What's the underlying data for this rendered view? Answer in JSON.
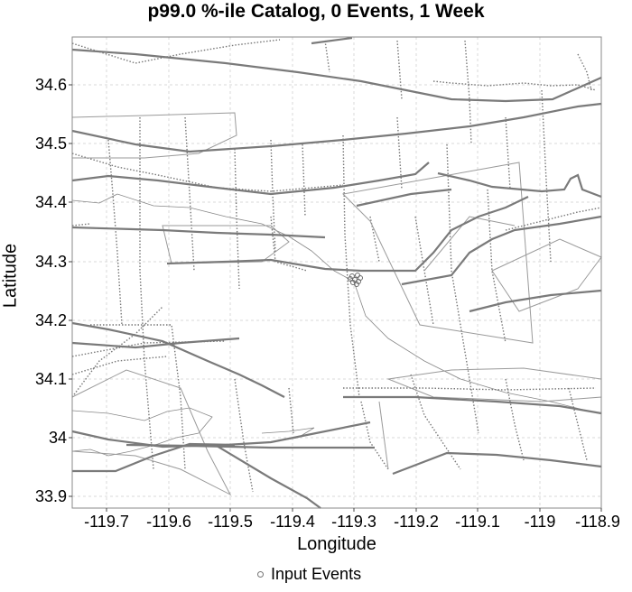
{
  "title": "p99.0 %-ile Catalog, 0 Events, 1 Week",
  "xlabel": "Longitude",
  "ylabel": "Latitude",
  "legend": {
    "label": "Input Events"
  },
  "x_ticks": [
    "-119.7",
    "-119.6",
    "-119.5",
    "-119.4",
    "-119.3",
    "-119.2",
    "-119.1",
    "-119",
    "-118.9"
  ],
  "y_ticks": [
    "34.6",
    "34.5",
    "34.4",
    "34.3",
    "34.2",
    "34.1",
    "34",
    "33.9"
  ],
  "map": {
    "lon_range": [
      -119.75,
      -118.9
    ],
    "lat_range": [
      33.88,
      34.68
    ],
    "grid": true,
    "events_cluster_center": [
      -119.29,
      34.275
    ]
  }
}
